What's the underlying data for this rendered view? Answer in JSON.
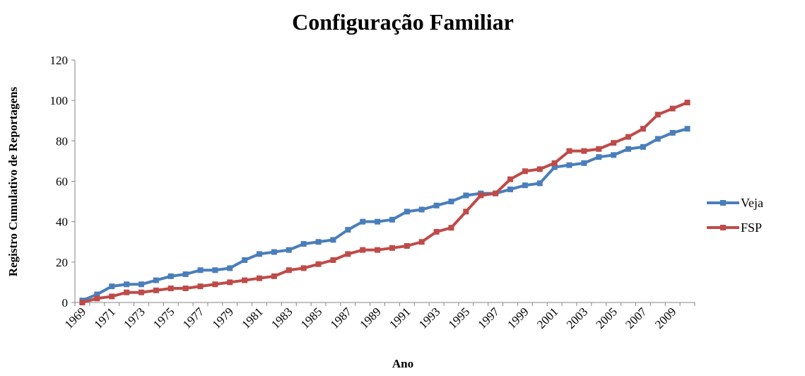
{
  "chart_data": {
    "type": "line",
    "title": "Configuração Familiar",
    "x_label": "Ano",
    "y_label": "Registro Cumulativo de Reportagens",
    "categories": [
      "1969",
      null,
      "1971",
      null,
      "1973",
      null,
      "1975",
      null,
      "1977",
      null,
      "1979",
      null,
      "1981",
      null,
      "1983",
      null,
      "1985",
      null,
      "1987",
      null,
      "1989",
      null,
      "1991",
      null,
      "1993",
      null,
      "1995",
      null,
      "1997",
      null,
      "1999",
      null,
      "2001",
      null,
      "2003",
      null,
      "2005",
      null,
      "2007",
      null,
      "2009",
      null
    ],
    "series": [
      {
        "name": "Veja",
        "color": "#4a7ebb",
        "values": [
          1,
          4,
          8,
          9,
          9,
          11,
          13,
          14,
          16,
          16,
          17,
          21,
          24,
          25,
          26,
          29,
          30,
          31,
          36,
          40,
          40,
          41,
          45,
          46,
          48,
          50,
          53,
          54,
          54,
          56,
          58,
          59,
          67,
          68,
          69,
          72,
          73,
          76,
          77,
          81,
          84,
          86
        ]
      },
      {
        "name": "FSP",
        "color": "#be4b48",
        "values": [
          0,
          2,
          3,
          5,
          5,
          6,
          7,
          7,
          8,
          9,
          10,
          11,
          12,
          13,
          16,
          17,
          19,
          21,
          24,
          26,
          26,
          27,
          28,
          30,
          35,
          37,
          45,
          53,
          54,
          61,
          65,
          66,
          69,
          75,
          75,
          76,
          79,
          82,
          86,
          93,
          96,
          99
        ]
      }
    ],
    "ylim": [
      0,
      120
    ],
    "yticks": [
      0,
      20,
      40,
      60,
      80,
      100,
      120
    ],
    "legend": "right"
  }
}
